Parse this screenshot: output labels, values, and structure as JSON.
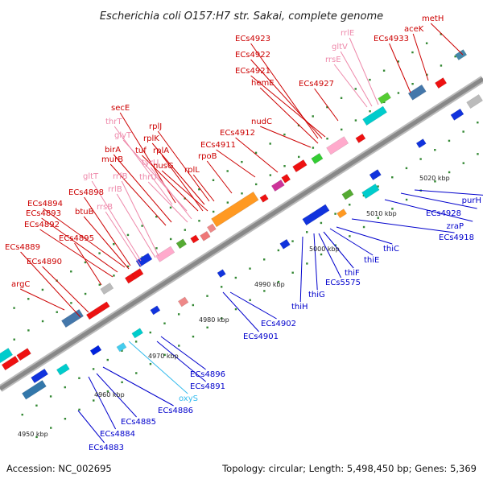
{
  "title": "Escherichia coli O157:H7 str. Sakai, complete genome",
  "footer": {
    "accession": "Accession: NC_002695",
    "summary": "Topology: circular; Length: 5,498,450 bp; Genes: 5,369"
  },
  "colors": {
    "red_label": "#cc0000",
    "pink_label": "#ee88aa",
    "blue_label": "#0000cc",
    "cyan_label": "#33bbee",
    "backbone": "#888888",
    "tick_green": "#338833"
  },
  "ticks": [
    "4950 kbp",
    "4960 kbp",
    "4970 kbp",
    "4980 kbp",
    "4990 kbp",
    "5000 kbp",
    "5010 kbp",
    "5020 kbp"
  ],
  "top_labels": [
    {
      "text": "ECs4923",
      "c": "red"
    },
    {
      "text": "ECs4922",
      "c": "red"
    },
    {
      "text": "ECs4921",
      "c": "red"
    },
    {
      "text": "hemE",
      "c": "red"
    },
    {
      "text": "ECs4927",
      "c": "red"
    },
    {
      "text": "rrlE",
      "c": "pink"
    },
    {
      "text": "gltV",
      "c": "pink"
    },
    {
      "text": "rrsE",
      "c": "pink"
    },
    {
      "text": "ECs4933",
      "c": "red"
    },
    {
      "text": "aceK",
      "c": "red"
    },
    {
      "text": "metH",
      "c": "red"
    },
    {
      "text": "secE",
      "c": "red"
    },
    {
      "text": "thrT",
      "c": "pink"
    },
    {
      "text": "rplJ",
      "c": "red"
    },
    {
      "text": "rplK",
      "c": "red"
    },
    {
      "text": "glyT",
      "c": "pink"
    },
    {
      "text": "tuf",
      "c": "red"
    },
    {
      "text": "rplA",
      "c": "red"
    },
    {
      "text": "nudC",
      "c": "red"
    },
    {
      "text": "ECs4912",
      "c": "red"
    },
    {
      "text": "ECs4911",
      "c": "red"
    },
    {
      "text": "rpoB",
      "c": "red"
    },
    {
      "text": "birA",
      "c": "red"
    },
    {
      "text": "murB",
      "c": "red"
    },
    {
      "text": "tyrU",
      "c": "pink"
    },
    {
      "text": "nusG",
      "c": "red"
    },
    {
      "text": "thrU",
      "c": "pink"
    },
    {
      "text": "rplL",
      "c": "red"
    },
    {
      "text": "gltT",
      "c": "pink"
    },
    {
      "text": "rrfB",
      "c": "pink"
    },
    {
      "text": "rrlB",
      "c": "pink"
    },
    {
      "text": "ECs4894",
      "c": "red"
    },
    {
      "text": "ECs4898",
      "c": "red"
    },
    {
      "text": "ECs4893",
      "c": "red"
    },
    {
      "text": "btuB",
      "c": "red"
    },
    {
      "text": "rrsB",
      "c": "pink"
    },
    {
      "text": "ECs4892",
      "c": "red"
    },
    {
      "text": "ECs4895",
      "c": "red"
    },
    {
      "text": "ECs4889",
      "c": "red"
    },
    {
      "text": "ECs4890",
      "c": "red"
    },
    {
      "text": "argC",
      "c": "red"
    }
  ],
  "bottom_labels": [
    {
      "text": "purH",
      "c": "blue"
    },
    {
      "text": "ECs4928",
      "c": "blue"
    },
    {
      "text": "zraP",
      "c": "blue"
    },
    {
      "text": "ECs4918",
      "c": "blue"
    },
    {
      "text": "thiC",
      "c": "blue"
    },
    {
      "text": "thiE",
      "c": "blue"
    },
    {
      "text": "thiF",
      "c": "blue"
    },
    {
      "text": "ECs5575",
      "c": "blue"
    },
    {
      "text": "thiG",
      "c": "blue"
    },
    {
      "text": "thiH",
      "c": "blue"
    },
    {
      "text": "ECs4902",
      "c": "blue"
    },
    {
      "text": "ECs4901",
      "c": "blue"
    },
    {
      "text": "ECs4896",
      "c": "blue"
    },
    {
      "text": "ECs4891",
      "c": "blue"
    },
    {
      "text": "oxyS",
      "c": "cyan"
    },
    {
      "text": "ECs4886",
      "c": "blue"
    },
    {
      "text": "ECs4885",
      "c": "blue"
    },
    {
      "text": "ECs4884",
      "c": "blue"
    },
    {
      "text": "ECs4883",
      "c": "blue"
    }
  ]
}
